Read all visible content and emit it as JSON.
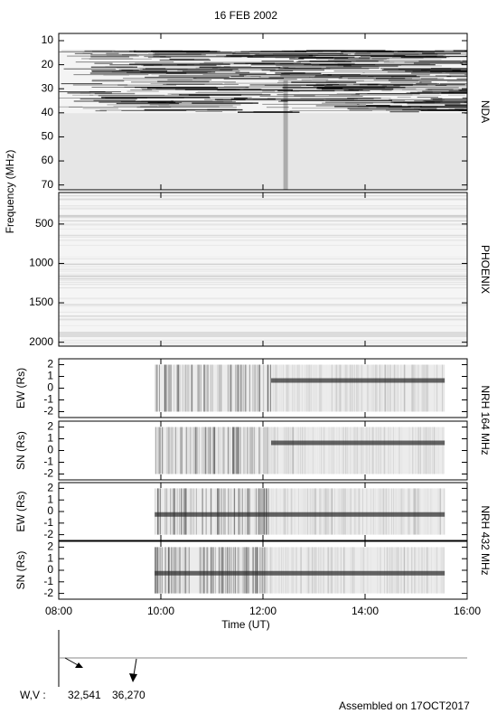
{
  "title": "16 FEB 2002",
  "x_axis": {
    "label": "Time (UT)",
    "xlim": [
      8,
      16
    ],
    "xticks": [
      {
        "value": 8,
        "label": "08:00"
      },
      {
        "value": 10,
        "label": "10:00"
      },
      {
        "value": 12,
        "label": "12:00"
      },
      {
        "value": 14,
        "label": "14:00"
      },
      {
        "value": 16,
        "label": "16:00"
      }
    ]
  },
  "chart_data": [
    {
      "type": "heatmap",
      "name": "NDA",
      "y_inverted": true,
      "ylim": [
        7,
        72
      ],
      "yticks": [
        10,
        20,
        30,
        40,
        50,
        60,
        70
      ]
    },
    {
      "type": "heatmap",
      "name": "PHOENIX",
      "y_inverted": true,
      "ylim": [
        100,
        2050
      ],
      "yticks": [
        500,
        1000,
        1500,
        2000
      ]
    },
    {
      "type": "heatmap",
      "ylabel": "EW (Rs)",
      "y_inverted": false,
      "ylim": [
        -2.5,
        2.5
      ],
      "yticks": [
        -2,
        -1,
        0,
        1,
        2
      ]
    },
    {
      "type": "heatmap",
      "ylabel": "SN (Rs)",
      "y_inverted": false,
      "ylim": [
        -2.5,
        2.5
      ],
      "yticks": [
        -2,
        -1,
        0,
        1,
        2
      ]
    },
    {
      "type": "heatmap",
      "ylabel": "EW (Rs)",
      "y_inverted": false,
      "ylim": [
        -2.5,
        2.5
      ],
      "yticks": [
        -2,
        -1,
        0,
        1,
        2
      ]
    },
    {
      "type": "heatmap",
      "ylabel": "SN (Rs)",
      "y_inverted": false,
      "ylim": [
        -2.5,
        2.5
      ],
      "yticks": [
        -2,
        -1,
        0,
        1,
        2
      ]
    }
  ],
  "groups": [
    {
      "ylabel": "Frequency (MHz)"
    },
    {
      "label": "NRH 164 MHz"
    },
    {
      "label": "NRH 432 MHz"
    }
  ],
  "footer": {
    "wv_label": "W,V :",
    "wv_values": [
      "32,541",
      "36,270"
    ],
    "assembled": "Assembled on 17OCT2017"
  }
}
